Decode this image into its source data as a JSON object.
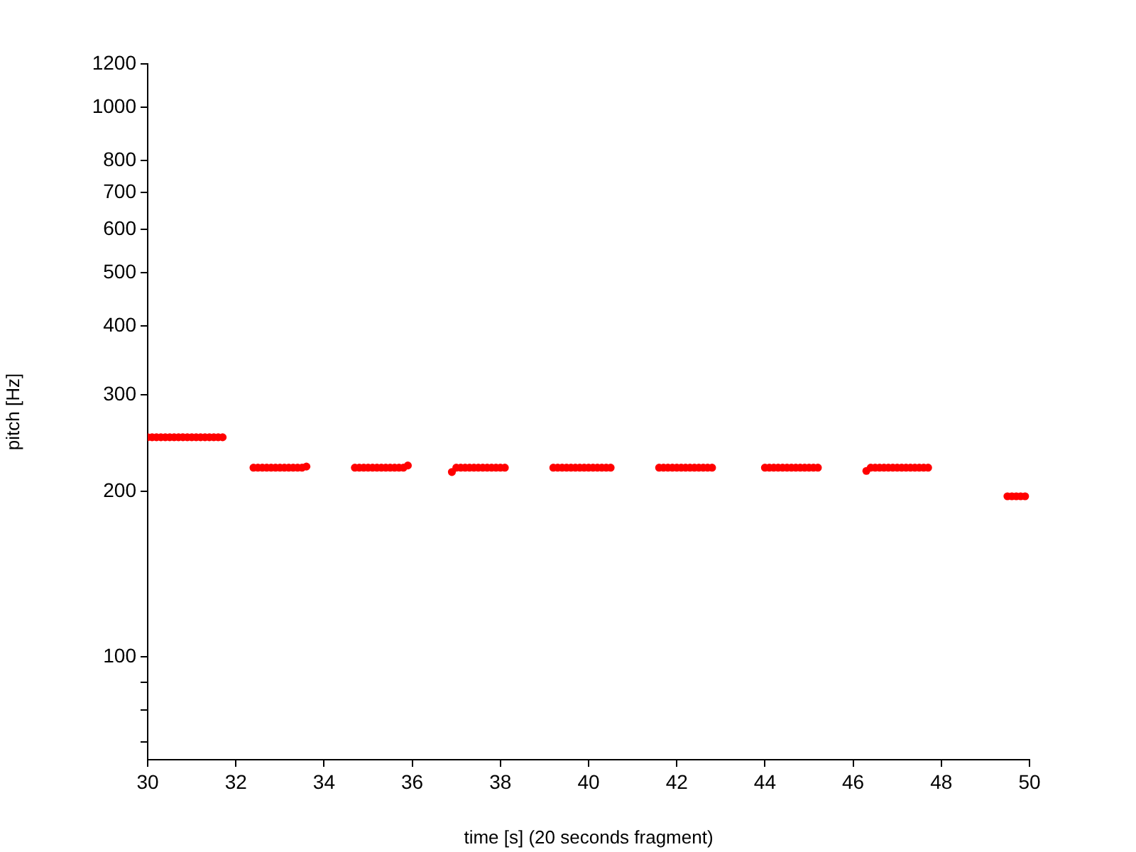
{
  "chart_data": {
    "type": "scatter",
    "xlabel": "time [s] (20 seconds fragment)",
    "ylabel": "pitch [Hz]",
    "xlim": [
      30,
      50
    ],
    "xticks": [
      30,
      32,
      34,
      36,
      38,
      40,
      42,
      44,
      46,
      48,
      50
    ],
    "ylim": [
      65,
      1200
    ],
    "yticks": [
      {
        "value": 70,
        "label": null
      },
      {
        "value": 80,
        "label": null
      },
      {
        "value": 90,
        "label": null
      },
      100,
      200,
      300,
      400,
      500,
      600,
      700,
      800,
      1000,
      1200
    ],
    "log": "y",
    "grid": false,
    "legend": false,
    "marker": "circle",
    "series": [
      {
        "color": "#ff0000",
        "x": [
          30,
          30.1,
          30.2,
          30.3,
          30.4,
          30.5,
          30.6,
          30.7,
          30.8,
          30.9,
          31,
          31.1,
          31.2,
          31.3,
          31.4,
          31.5,
          31.6,
          31.7,
          32.4,
          32.5,
          32.6,
          32.7,
          32.8,
          32.9,
          33,
          33.1,
          33.2,
          33.3,
          33.4,
          33.5,
          33.6,
          34.7,
          34.8,
          34.9,
          35,
          35.1,
          35.2,
          35.3,
          35.4,
          35.5,
          35.6,
          35.7,
          35.8,
          35.9,
          36.9,
          37,
          37.1,
          37.2,
          37.3,
          37.4,
          37.5,
          37.6,
          37.7,
          37.8,
          37.9,
          38,
          38.1,
          39.2,
          39.3,
          39.4,
          39.5,
          39.6,
          39.7,
          39.8,
          39.9,
          40,
          40.1,
          40.2,
          40.3,
          40.4,
          40.5,
          41.6,
          41.7,
          41.8,
          41.9,
          42,
          42.1,
          42.2,
          42.3,
          42.4,
          42.5,
          42.6,
          42.7,
          42.8,
          44,
          44.1,
          44.2,
          44.3,
          44.4,
          44.5,
          44.6,
          44.7,
          44.8,
          44.9,
          45,
          45.1,
          45.2,
          46.3,
          46.4,
          46.5,
          46.6,
          46.7,
          46.8,
          46.9,
          47,
          47.1,
          47.2,
          47.3,
          47.4,
          47.5,
          47.6,
          47.7,
          49.5,
          49.6,
          49.7,
          49.8,
          49.9
        ],
        "values": [
          251,
          251,
          251,
          251,
          251,
          251,
          251,
          251,
          251,
          251,
          251,
          251,
          251,
          251,
          251,
          251,
          251,
          251,
          221,
          221,
          221,
          221,
          221,
          221,
          221,
          221,
          221,
          221,
          221,
          221,
          222,
          221,
          221,
          221,
          221,
          221,
          221,
          221,
          221,
          221,
          221,
          221,
          221,
          223,
          217,
          221,
          221,
          221,
          221,
          221,
          221,
          221,
          221,
          221,
          221,
          221,
          221,
          221,
          221,
          221,
          221,
          221,
          221,
          221,
          221,
          221,
          221,
          221,
          221,
          221,
          221,
          221,
          221,
          221,
          221,
          221,
          221,
          221,
          221,
          221,
          221,
          221,
          221,
          221,
          221,
          221,
          221,
          221,
          221,
          221,
          221,
          221,
          221,
          221,
          221,
          221,
          221,
          218,
          221,
          221,
          221,
          221,
          221,
          221,
          221,
          221,
          221,
          221,
          221,
          221,
          221,
          221,
          196,
          196,
          196,
          196,
          196
        ]
      }
    ]
  }
}
